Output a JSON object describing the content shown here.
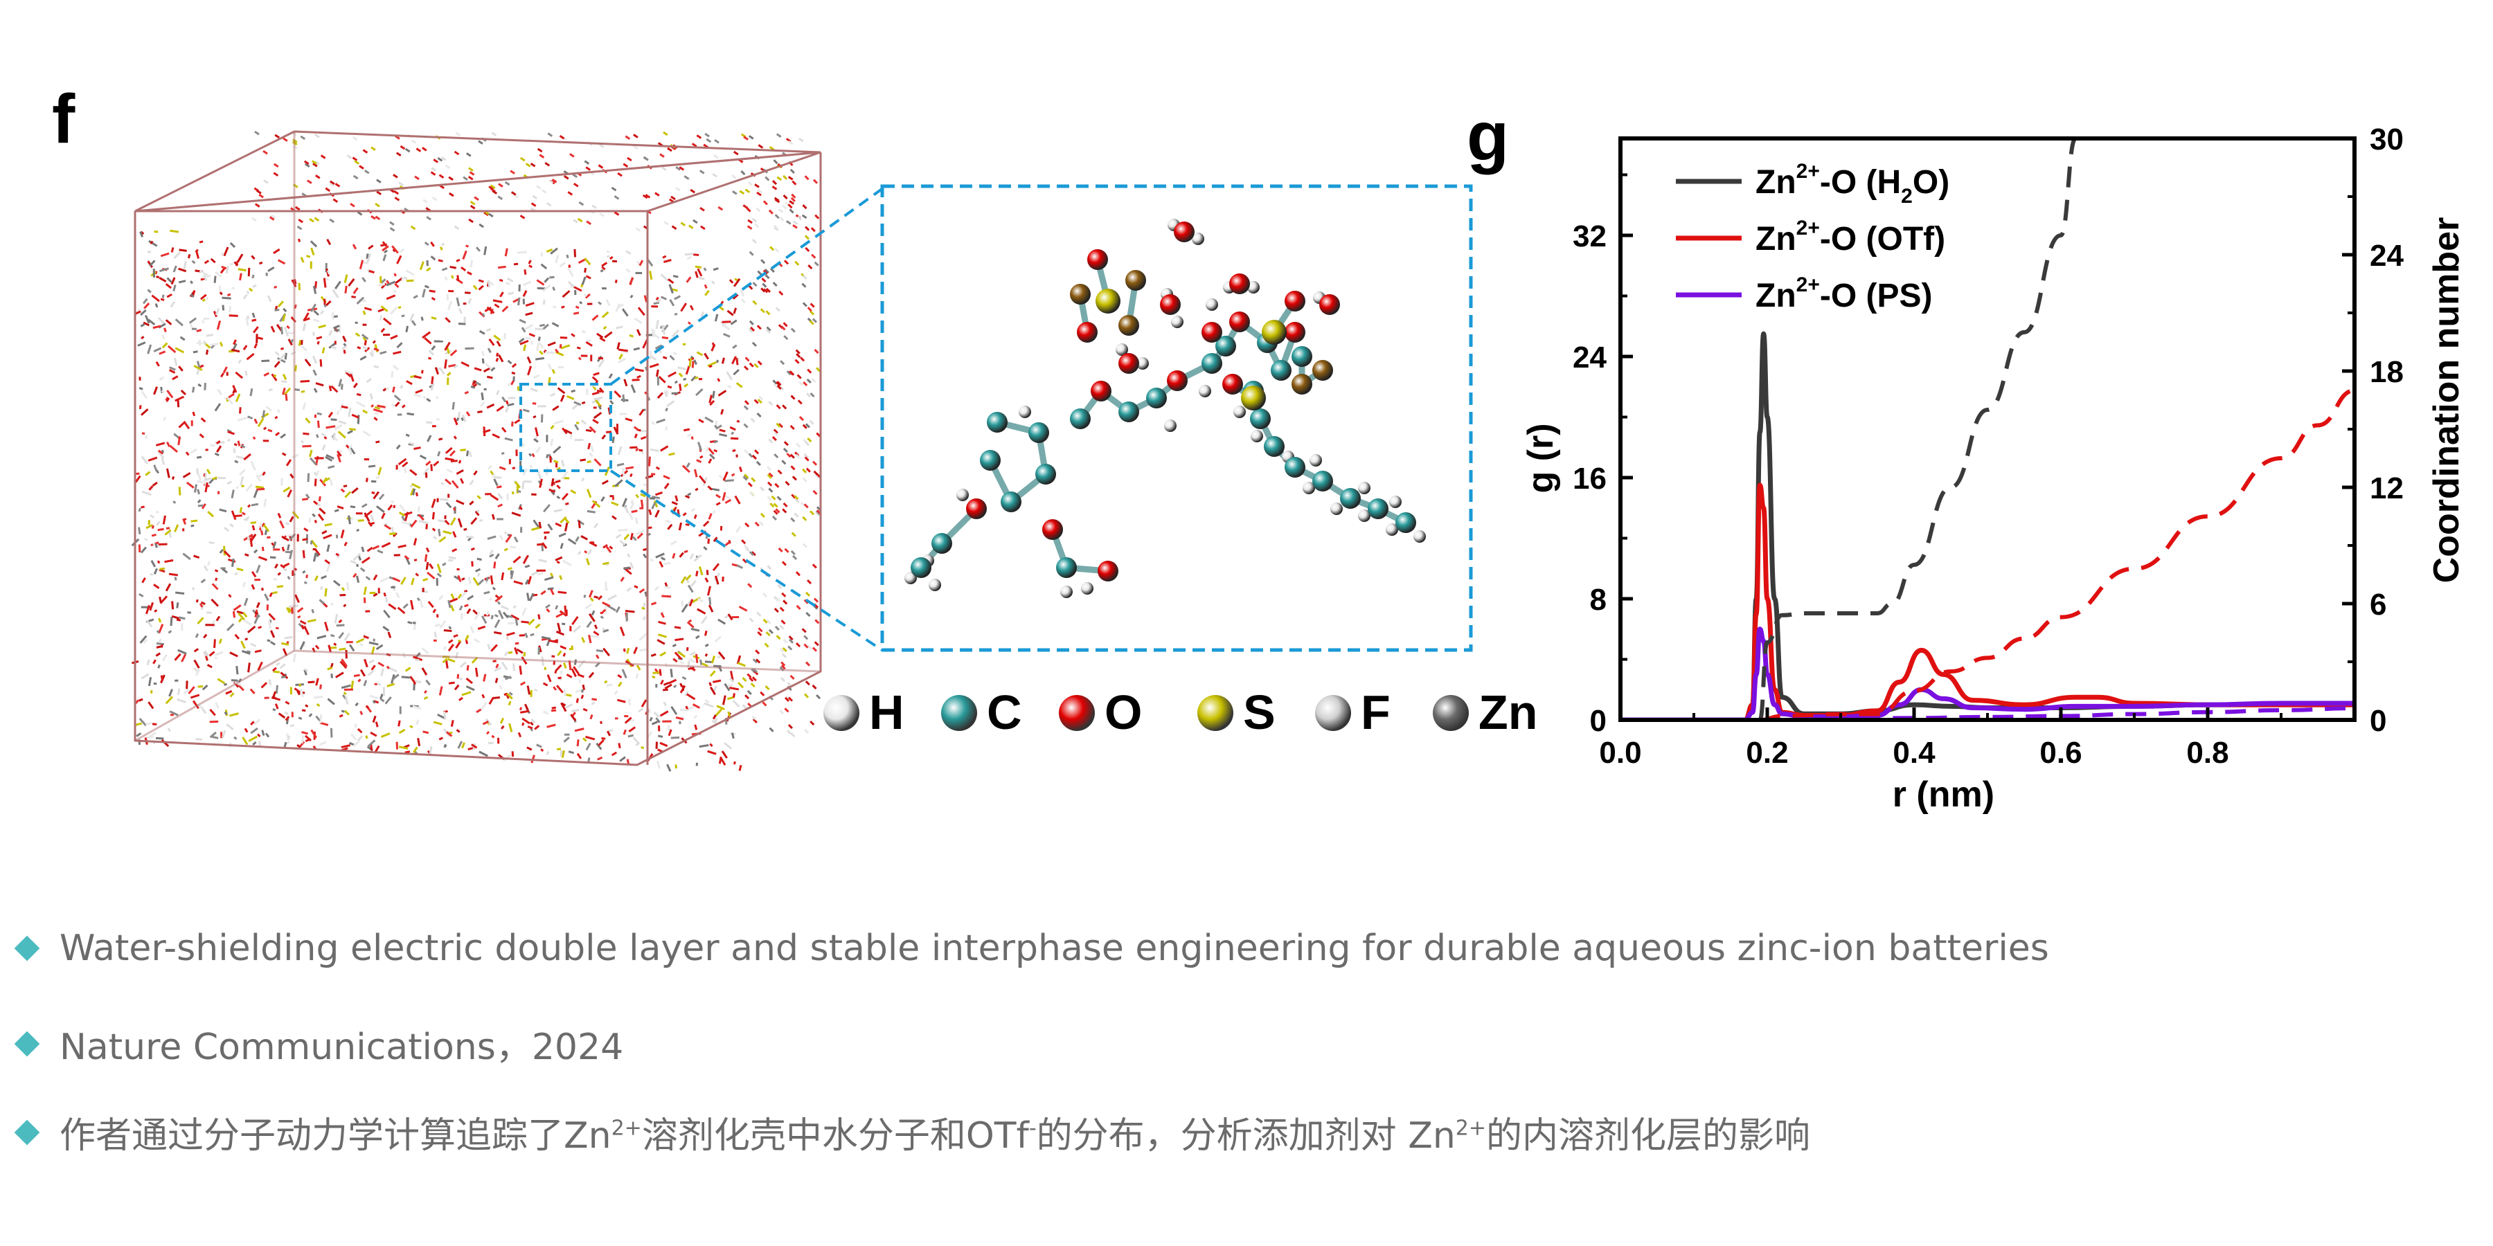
{
  "panel_f": {
    "label": "f"
  },
  "panel_g": {
    "label": "g"
  },
  "atom_legend": [
    {
      "symbol": "H",
      "color": "#e8e8e8"
    },
    {
      "symbol": "C",
      "color": "#2a9a9a"
    },
    {
      "symbol": "O",
      "color": "#e00000"
    },
    {
      "symbol": "S",
      "color": "#c8c000"
    },
    {
      "symbol": "F",
      "color": "#d0d0d0"
    },
    {
      "symbol": "Zn",
      "color": "#6a6a6a"
    }
  ],
  "colors": {
    "water": "#3a3a3a",
    "otf": "#e01010",
    "ps": "#7a10e0",
    "zoom_box": "#1a9ad6",
    "bullet": "#4bbbc0"
  },
  "chart_data": {
    "type": "line",
    "xlabel": "r (nm)",
    "ylabel": "g (r)",
    "y2label": "Coordination number",
    "xlim": [
      0,
      1.0
    ],
    "ylim": [
      0,
      38.4
    ],
    "y2lim": [
      0,
      30
    ],
    "xticks": [
      "0.0",
      "0.2",
      "0.4",
      "0.6",
      "0.8"
    ],
    "yticks": [
      "0",
      "8",
      "16",
      "24",
      "32"
    ],
    "y2ticks": [
      "0",
      "6",
      "12",
      "18",
      "24",
      "30"
    ],
    "legend_position": "top-left",
    "legend": [
      {
        "base": "Zn",
        "sup": "2+",
        "rest": "-O (H",
        "sub": "2",
        "end": "O)",
        "color": "#3a3a3a"
      },
      {
        "base": "Zn",
        "sup": "2+",
        "rest": "-O (OTf)",
        "sub": "",
        "end": "",
        "color": "#e01010"
      },
      {
        "base": "Zn",
        "sup": "2+",
        "rest": "-O (PS)",
        "sub": "",
        "end": "",
        "color": "#7a10e0"
      }
    ],
    "series": [
      {
        "key": "water_gr",
        "axis": "left",
        "dash": false,
        "color": "#3a3a3a",
        "x": [
          0,
          0.17,
          0.18,
          0.185,
          0.19,
          0.195,
          0.2,
          0.21,
          0.22,
          0.25,
          0.3,
          0.35,
          0.4,
          0.45,
          0.5,
          0.6,
          0.7,
          0.8,
          0.9,
          1.0
        ],
        "y": [
          0,
          0,
          1,
          8,
          19,
          25.5,
          20,
          8,
          1.5,
          0.4,
          0.4,
          0.6,
          1,
          0.9,
          0.8,
          0.8,
          0.9,
          1,
          1,
          1
        ]
      },
      {
        "key": "otf_gr",
        "axis": "left",
        "dash": false,
        "color": "#e01010",
        "x": [
          0,
          0.17,
          0.18,
          0.185,
          0.19,
          0.195,
          0.2,
          0.21,
          0.22,
          0.25,
          0.3,
          0.35,
          0.38,
          0.41,
          0.44,
          0.48,
          0.55,
          0.62,
          0.65,
          0.7,
          0.8,
          0.9,
          1.0
        ],
        "y": [
          0,
          0,
          1,
          7,
          15.5,
          14,
          8,
          2,
          0.5,
          0.3,
          0.3,
          0.6,
          2.5,
          4.6,
          3,
          1.3,
          1,
          1.5,
          1.5,
          1.1,
          1,
          1,
          1
        ]
      },
      {
        "key": "ps_gr",
        "axis": "left",
        "dash": false,
        "color": "#7a10e0",
        "x": [
          0,
          0.17,
          0.18,
          0.185,
          0.19,
          0.195,
          0.2,
          0.21,
          0.22,
          0.25,
          0.3,
          0.35,
          0.38,
          0.41,
          0.44,
          0.48,
          0.55,
          0.62,
          0.7,
          0.8,
          0.9,
          1.0
        ],
        "y": [
          0,
          0,
          0.5,
          3,
          6,
          5.2,
          3,
          1,
          0.4,
          0.2,
          0.2,
          0.3,
          1,
          2,
          1.4,
          0.8,
          0.7,
          0.9,
          0.9,
          1,
          1.1,
          1.1
        ]
      },
      {
        "key": "water_cn",
        "axis": "right",
        "dash": true,
        "color": "#3a3a3a",
        "x": [
          0.19,
          0.2,
          0.22,
          0.25,
          0.3,
          0.35,
          0.37,
          0.4,
          0.45,
          0.5,
          0.55,
          0.6,
          0.62
        ],
        "y": [
          0,
          4,
          5.4,
          5.5,
          5.5,
          5.5,
          6,
          8,
          12,
          16,
          20,
          25,
          30
        ]
      },
      {
        "key": "otf_cn",
        "axis": "right",
        "dash": true,
        "color": "#e01010",
        "x": [
          0.19,
          0.22,
          0.3,
          0.35,
          0.4,
          0.45,
          0.5,
          0.55,
          0.6,
          0.7,
          0.8,
          0.9,
          0.95,
          1.0
        ],
        "y": [
          0,
          0.2,
          0.3,
          0.3,
          1.5,
          2.5,
          3.2,
          4.2,
          5.3,
          7.8,
          10.5,
          13.5,
          15.2,
          17
        ]
      },
      {
        "key": "ps_cn",
        "axis": "right",
        "dash": true,
        "color": "#7a10e0",
        "x": [
          0.19,
          0.3,
          0.4,
          0.5,
          0.6,
          0.7,
          0.8,
          0.9,
          1.0
        ],
        "y": [
          0,
          0.05,
          0.1,
          0.15,
          0.2,
          0.3,
          0.4,
          0.5,
          0.6
        ]
      }
    ]
  },
  "bullets": [
    {
      "text": "Water-shielding electric double layer and stable interphase engineering for durable aqueous zinc-ion batteries"
    },
    {
      "text": "Nature Communications，2024"
    },
    {
      "p1": "作者通过分子动力学计算追踪了Zn",
      "s1": "2+",
      "p2": "溶剂化壳中水分子和OTf",
      "s2": "-",
      "p3": "的分布，分析添加剂对 Zn",
      "s3": "2+",
      "p4": "的内溶剂化层的影响"
    }
  ]
}
